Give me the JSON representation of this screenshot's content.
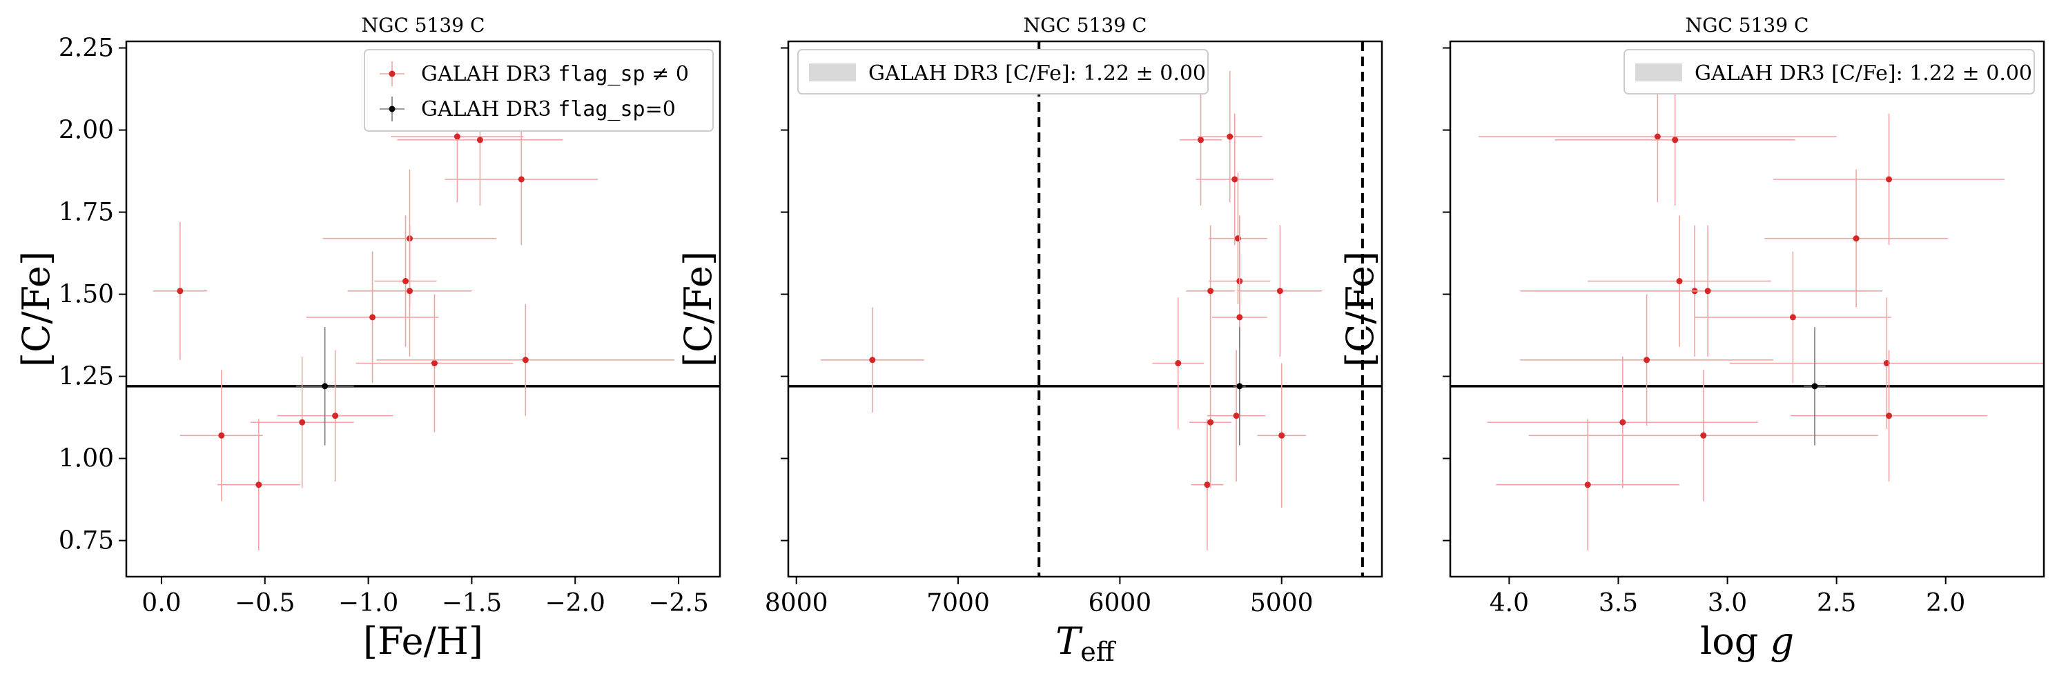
{
  "colors": {
    "flag_nonzero": "#d62728",
    "flag_zero": "#000000",
    "errorbar_nonzero": "#f2a3a3",
    "errorbar_zero": "#7a7a7a",
    "band": "#d9d9d9",
    "frame": "#000000"
  },
  "chart_data": [
    {
      "type": "scatter",
      "title": "NGC 5139 C",
      "xlabel": "[Fe/H]",
      "ylabel": "[C/Fe]",
      "xlim": [
        0.17,
        -2.7
      ],
      "ylim": [
        0.64,
        2.27
      ],
      "x_inverted": true,
      "xticks": [
        0.0,
        -0.5,
        -1.0,
        -1.5,
        -2.0,
        -2.5
      ],
      "xtick_labels": [
        "0.0",
        "−0.5",
        "−1.0",
        "−1.5",
        "−2.0",
        "−2.5"
      ],
      "yticks": [
        0.75,
        1.0,
        1.25,
        1.5,
        1.75,
        2.0,
        2.25
      ],
      "ytick_labels": [
        "0.75",
        "1.00",
        "1.25",
        "1.50",
        "1.75",
        "2.00",
        "2.25"
      ],
      "hline": 1.22,
      "legend_placement": "upper-right",
      "legend": {
        "nonzero_prefix": "GALAH DR3 ",
        "nonzero_code": "flag_sp",
        "nonzero_suffix": " ≠ 0",
        "zero_prefix": "GALAH DR3 ",
        "zero_code": "flag_sp",
        "zero_suffix": "=0"
      },
      "series": [
        {
          "name_ref": "nonzero",
          "points": [
            {
              "x": -0.09,
              "y": 1.51,
              "xerr": 0.13,
              "yerr": 0.21
            },
            {
              "x": -0.29,
              "y": 1.07,
              "xerr": 0.2,
              "yerr": 0.2
            },
            {
              "x": -0.47,
              "y": 0.92,
              "xerr": 0.2,
              "yerr": 0.2
            },
            {
              "x": -0.68,
              "y": 1.11,
              "xerr": 0.25,
              "yerr": 0.2
            },
            {
              "x": -0.84,
              "y": 1.13,
              "xerr": 0.28,
              "yerr": 0.2
            },
            {
              "x": -1.02,
              "y": 1.43,
              "xerr": 0.32,
              "yerr": 0.2
            },
            {
              "x": -1.18,
              "y": 1.54,
              "xerr": 0.15,
              "yerr": 0.2
            },
            {
              "x": -1.2,
              "y": 1.67,
              "xerr": 0.42,
              "yerr": 0.21
            },
            {
              "x": -1.2,
              "y": 1.51,
              "xerr": 0.3,
              "yerr": 0.2
            },
            {
              "x": -1.32,
              "y": 1.29,
              "xerr": 0.38,
              "yerr": 0.21
            },
            {
              "x": -1.43,
              "y": 1.98,
              "xerr": 0.32,
              "yerr": 0.2
            },
            {
              "x": -1.54,
              "y": 1.97,
              "xerr": 0.4,
              "yerr": 0.2
            },
            {
              "x": -1.74,
              "y": 1.85,
              "xerr": 0.37,
              "yerr": 0.2
            },
            {
              "x": -1.76,
              "y": 1.3,
              "xerr": 0.72,
              "yerr": 0.17
            }
          ]
        },
        {
          "name_ref": "zero",
          "points": [
            {
              "x": -0.79,
              "y": 1.22,
              "xerr": 0.14,
              "yerr": 0.18
            }
          ]
        }
      ]
    },
    {
      "type": "scatter",
      "title": "NGC 5139 C",
      "xlabel": "T_eff",
      "ylabel": "[C/Fe]",
      "xlim": [
        8050,
        4380
      ],
      "ylim": [
        0.64,
        2.27
      ],
      "x_inverted": true,
      "xticks": [
        8000,
        7000,
        6000,
        5000
      ],
      "xtick_labels": [
        "8000",
        "7000",
        "6000",
        "5000"
      ],
      "yticks": [
        0.75,
        1.0,
        1.25,
        1.5,
        1.75,
        2.0,
        2.25
      ],
      "ytick_labels": [
        "",
        "",
        "",
        "",
        "",
        "",
        ""
      ],
      "hline": 1.22,
      "vlines": [
        6500,
        4500
      ],
      "legend_placement": "upper-left",
      "legend": {
        "band_label": "GALAH DR3 [C/Fe]: 1.22 ± 0.00"
      },
      "series": [
        {
          "name_ref": "nonzero",
          "points": [
            {
              "x": 7530,
              "y": 1.3,
              "xerr": 320,
              "yerr": 0.16
            },
            {
              "x": 5640,
              "y": 1.29,
              "xerr": 160,
              "yerr": 0.2
            },
            {
              "x": 5500,
              "y": 1.97,
              "xerr": 130,
              "yerr": 0.2
            },
            {
              "x": 5460,
              "y": 0.92,
              "xerr": 100,
              "yerr": 0.2
            },
            {
              "x": 5440,
              "y": 1.51,
              "xerr": 150,
              "yerr": 0.2
            },
            {
              "x": 5440,
              "y": 1.11,
              "xerr": 130,
              "yerr": 0.2
            },
            {
              "x": 5320,
              "y": 1.98,
              "xerr": 200,
              "yerr": 0.2
            },
            {
              "x": 5290,
              "y": 1.85,
              "xerr": 240,
              "yerr": 0.2
            },
            {
              "x": 5280,
              "y": 1.13,
              "xerr": 180,
              "yerr": 0.2
            },
            {
              "x": 5270,
              "y": 1.67,
              "xerr": 180,
              "yerr": 0.2
            },
            {
              "x": 5260,
              "y": 1.54,
              "xerr": 190,
              "yerr": 0.2
            },
            {
              "x": 5260,
              "y": 1.43,
              "xerr": 170,
              "yerr": 0.2
            },
            {
              "x": 5010,
              "y": 1.51,
              "xerr": 260,
              "yerr": 0.2
            },
            {
              "x": 5000,
              "y": 1.07,
              "xerr": 150,
              "yerr": 0.22
            }
          ]
        },
        {
          "name_ref": "zero",
          "points": [
            {
              "x": 5260,
              "y": 1.22,
              "xerr": 40,
              "yerr": 0.18
            }
          ]
        }
      ]
    },
    {
      "type": "scatter",
      "title": "NGC 5139 C",
      "xlabel": "log g",
      "ylabel": "[C/Fe]",
      "xlim": [
        4.27,
        1.55
      ],
      "ylim": [
        0.64,
        2.27
      ],
      "x_inverted": true,
      "xticks": [
        4.0,
        3.5,
        3.0,
        2.5,
        2.0
      ],
      "xtick_labels": [
        "4.0",
        "3.5",
        "3.0",
        "2.5",
        "2.0"
      ],
      "yticks": [
        0.75,
        1.0,
        1.25,
        1.5,
        1.75,
        2.0,
        2.25
      ],
      "ytick_labels": [
        "",
        "",
        "",
        "",
        "",
        "",
        ""
      ],
      "hline": 1.22,
      "legend_placement": "upper-right",
      "legend": {
        "band_label": "GALAH DR3 [C/Fe]: 1.22 ± 0.00"
      },
      "series": [
        {
          "name_ref": "nonzero",
          "points": [
            {
              "x": 3.64,
              "y": 0.92,
              "xerr": 0.42,
              "yerr": 0.2
            },
            {
              "x": 3.48,
              "y": 1.11,
              "xerr": 0.62,
              "yerr": 0.2
            },
            {
              "x": 3.37,
              "y": 1.3,
              "xerr": 0.58,
              "yerr": 0.2
            },
            {
              "x": 3.32,
              "y": 1.98,
              "xerr": 0.82,
              "yerr": 0.2
            },
            {
              "x": 3.24,
              "y": 1.97,
              "xerr": 0.55,
              "yerr": 0.2
            },
            {
              "x": 3.22,
              "y": 1.54,
              "xerr": 0.42,
              "yerr": 0.2
            },
            {
              "x": 3.15,
              "y": 1.51,
              "xerr": 0.8,
              "yerr": 0.2
            },
            {
              "x": 3.11,
              "y": 1.07,
              "xerr": 0.8,
              "yerr": 0.2
            },
            {
              "x": 3.09,
              "y": 1.51,
              "xerr": 0.8,
              "yerr": 0.2
            },
            {
              "x": 2.7,
              "y": 1.43,
              "xerr": 0.45,
              "yerr": 0.2
            },
            {
              "x": 2.41,
              "y": 1.67,
              "xerr": 0.42,
              "yerr": 0.21
            },
            {
              "x": 2.26,
              "y": 1.85,
              "xerr": 0.53,
              "yerr": 0.2
            },
            {
              "x": 2.27,
              "y": 1.29,
              "xerr": 0.72,
              "yerr": 0.2
            },
            {
              "x": 2.26,
              "y": 1.13,
              "xerr": 0.45,
              "yerr": 0.2
            }
          ]
        },
        {
          "name_ref": "zero",
          "points": [
            {
              "x": 2.6,
              "y": 1.22,
              "xerr": 0.05,
              "yerr": 0.18
            }
          ]
        }
      ]
    }
  ]
}
